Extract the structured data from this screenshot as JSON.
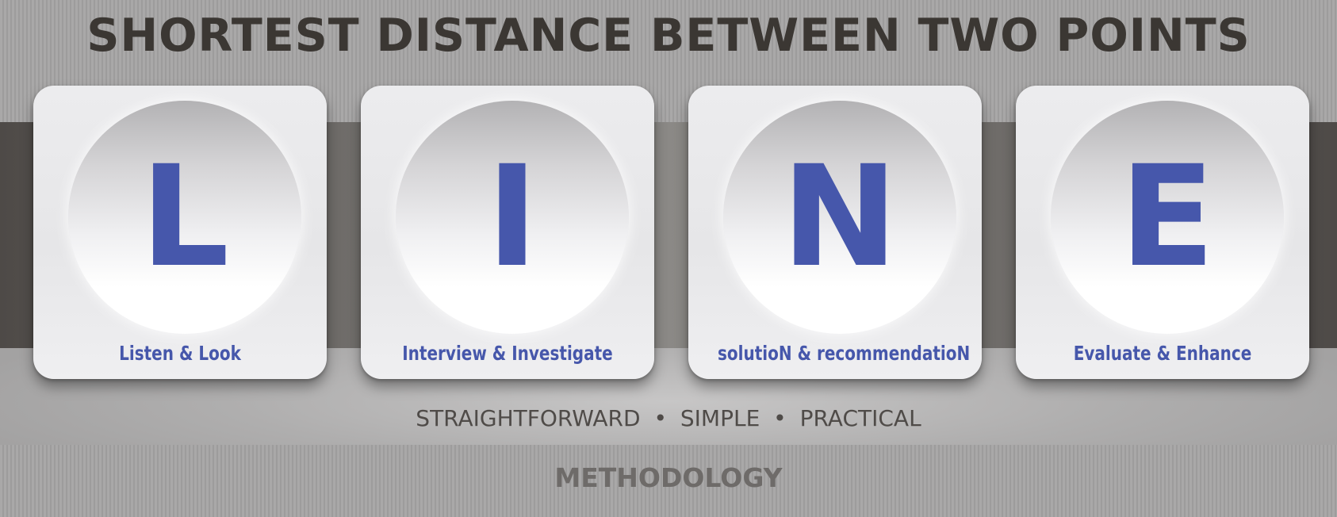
{
  "title": "SHORTEST DISTANCE BETWEEN TWO POINTS",
  "cards": [
    {
      "letter": "L",
      "caption": "Listen & Look"
    },
    {
      "letter": "I",
      "caption": "Interview & Investigate"
    },
    {
      "letter": "N",
      "caption": "solutioN & recommendatioN"
    },
    {
      "letter": "E",
      "caption": "Evaluate & Enhance"
    }
  ],
  "tagline": {
    "items": [
      "STRAIGHTFORWARD",
      "SIMPLE",
      "PRACTICAL"
    ],
    "separator": "•"
  },
  "footer": "METHODOLOGY",
  "colors": {
    "accent": "#4657ab",
    "title_text": "#3b3733",
    "band": "#6b6865"
  }
}
